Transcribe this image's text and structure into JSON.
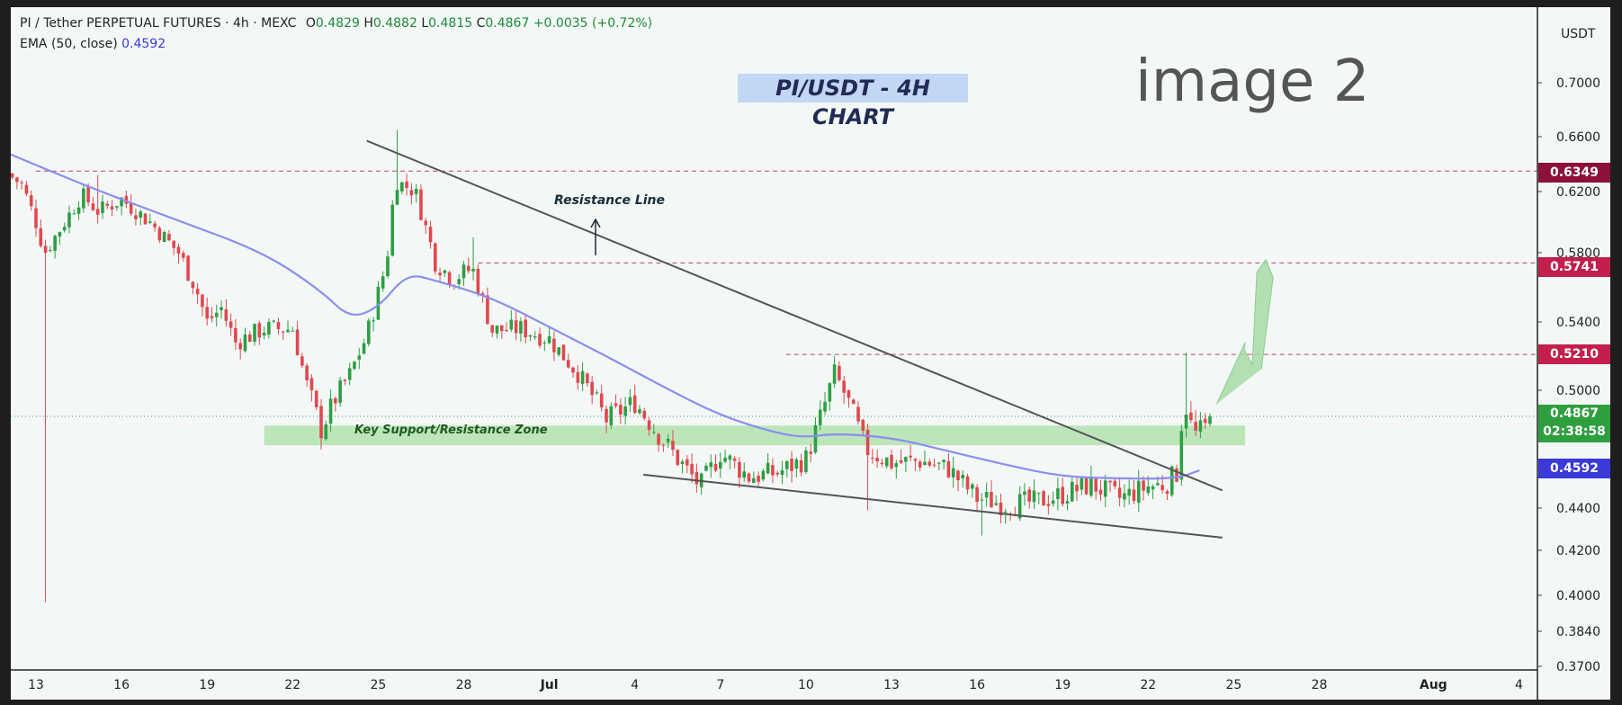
{
  "legend": {
    "symbol": "PI / Tether PERPETUAL FUTURES · 4h · MEXC",
    "open_label": "O",
    "open": "0.4829",
    "high_label": "H",
    "high": "0.4882",
    "low_label": "L",
    "low": "0.4815",
    "close_label": "C",
    "close": "0.4867",
    "change": "+0.0035 (+0.72%)",
    "ema_label": "EMA (50, close)",
    "ema_value": "0.4592"
  },
  "overlay": {
    "title": "PI/USDT - 4H CHART",
    "image_label": "image 2",
    "resistance_label": "Resistance Line",
    "zone_label": "Key Support/Resistance Zone"
  },
  "price_axis": {
    "currency": "USDT",
    "current_price": "0.4867",
    "countdown": "02:38:58"
  },
  "colors": {
    "up": "#2e9e44",
    "down": "#e0484e",
    "ema": "#8a8ef0",
    "zone": "#b7e2b4",
    "level_badge": "#c31f4d",
    "level_badge_dark": "#8c1138",
    "ema_badge": "#3a3ad8",
    "price_badge": "#2f9e3f",
    "background": "#f3f8f6"
  },
  "chart_data": {
    "type": "candlestick",
    "title": "PI/USDT - 4H CHART",
    "interval": "4h",
    "xlabel": "",
    "ylabel": "",
    "ylim": [
      0.37,
      0.7
    ],
    "y_ticks": [
      "0.7000",
      "0.6600",
      "0.6200",
      "0.5800",
      "0.5400",
      "0.5000",
      "0.4400",
      "0.4200",
      "0.4000",
      "0.3840",
      "0.3700"
    ],
    "x_ticks": [
      "13",
      "16",
      "19",
      "22",
      "25",
      "28",
      "Jul",
      "4",
      "7",
      "10",
      "13",
      "16",
      "19",
      "22",
      "25",
      "28",
      "Aug",
      "4"
    ],
    "x_tick_days": [
      0,
      3,
      6,
      9,
      12,
      15,
      18,
      21,
      24,
      27,
      30,
      33,
      36,
      39,
      42,
      45,
      49,
      52
    ],
    "grid": false,
    "last_ohlc": {
      "open": 0.4829,
      "high": 0.4882,
      "low": 0.4815,
      "close": 0.4867
    },
    "ema": {
      "name": "EMA (50, close)",
      "last": 0.4592
    },
    "horizontal_levels": [
      {
        "value": 0.6349,
        "label": "0.6349"
      },
      {
        "value": 0.5741,
        "label": "0.5741"
      },
      {
        "value": 0.521,
        "label": "0.5210"
      },
      {
        "value": 0.4867,
        "label": "0.4867"
      }
    ],
    "support_zone": {
      "label": "Key Support/Resistance Zone",
      "low": 0.472,
      "high": 0.482,
      "day_start": 8,
      "day_end": 42.4
    },
    "trendlines": [
      {
        "label": "Resistance Line",
        "day_start": 11.6,
        "value_start": 0.657,
        "day_end": 41.6,
        "value_end": 0.449
      },
      {
        "label": "",
        "day_start": 21.3,
        "value_start": 0.457,
        "day_end": 41.6,
        "value_end": 0.426
      }
    ],
    "projected_targets": [
      0.528,
      0.576
    ],
    "ema_curve": [
      [
        -1,
        0.648
      ],
      [
        2,
        0.622
      ],
      [
        5,
        0.601
      ],
      [
        8,
        0.58
      ],
      [
        10,
        0.558
      ],
      [
        11,
        0.542
      ],
      [
        12,
        0.548
      ],
      [
        13,
        0.568
      ],
      [
        14,
        0.564
      ],
      [
        16,
        0.554
      ],
      [
        18,
        0.537
      ],
      [
        20,
        0.52
      ],
      [
        22,
        0.502
      ],
      [
        24,
        0.487
      ],
      [
        26,
        0.478
      ],
      [
        27,
        0.476
      ],
      [
        28,
        0.478
      ],
      [
        30,
        0.476
      ],
      [
        32,
        0.469
      ],
      [
        34,
        0.462
      ],
      [
        36,
        0.456
      ],
      [
        38,
        0.455
      ],
      [
        40,
        0.455
      ],
      [
        40.8,
        0.4592
      ]
    ],
    "price_path": [
      [
        -1,
        0.633
      ],
      [
        -0.5,
        0.625
      ],
      [
        0,
        0.6
      ],
      [
        0.3,
        0.58
      ],
      [
        1,
        0.6
      ],
      [
        1.6,
        0.618
      ],
      [
        2.2,
        0.607
      ],
      [
        3,
        0.615
      ],
      [
        4,
        0.6
      ],
      [
        5,
        0.58
      ],
      [
        5.6,
        0.56
      ],
      [
        6,
        0.54
      ],
      [
        6.5,
        0.548
      ],
      [
        7,
        0.528
      ],
      [
        8,
        0.536
      ],
      [
        9,
        0.536
      ],
      [
        9.5,
        0.503
      ],
      [
        10,
        0.48
      ],
      [
        10.5,
        0.496
      ],
      [
        11,
        0.509
      ],
      [
        11.6,
        0.532
      ],
      [
        12.3,
        0.575
      ],
      [
        12.6,
        0.628
      ],
      [
        13.3,
        0.62
      ],
      [
        14,
        0.575
      ],
      [
        14.6,
        0.565
      ],
      [
        15.3,
        0.571
      ],
      [
        16,
        0.535
      ],
      [
        17,
        0.536
      ],
      [
        18,
        0.53
      ],
      [
        19,
        0.51
      ],
      [
        20,
        0.485
      ],
      [
        21,
        0.494
      ],
      [
        21.8,
        0.478
      ],
      [
        22.5,
        0.465
      ],
      [
        23.3,
        0.451
      ],
      [
        24,
        0.468
      ],
      [
        25,
        0.456
      ],
      [
        26,
        0.458
      ],
      [
        27,
        0.465
      ],
      [
        27.6,
        0.49
      ],
      [
        28,
        0.51
      ],
      [
        28.6,
        0.49
      ],
      [
        29.1,
        0.47
      ],
      [
        30,
        0.463
      ],
      [
        31,
        0.464
      ],
      [
        32,
        0.46
      ],
      [
        33,
        0.445
      ],
      [
        34,
        0.442
      ],
      [
        35,
        0.443
      ],
      [
        36,
        0.447
      ],
      [
        37,
        0.452
      ],
      [
        38,
        0.445
      ],
      [
        39,
        0.451
      ],
      [
        39.6,
        0.452
      ],
      [
        40,
        0.458
      ],
      [
        40.2,
        0.488
      ],
      [
        40.3,
        0.493
      ],
      [
        40.6,
        0.477
      ],
      [
        41,
        0.481
      ],
      [
        41.2,
        0.4867
      ]
    ]
  }
}
